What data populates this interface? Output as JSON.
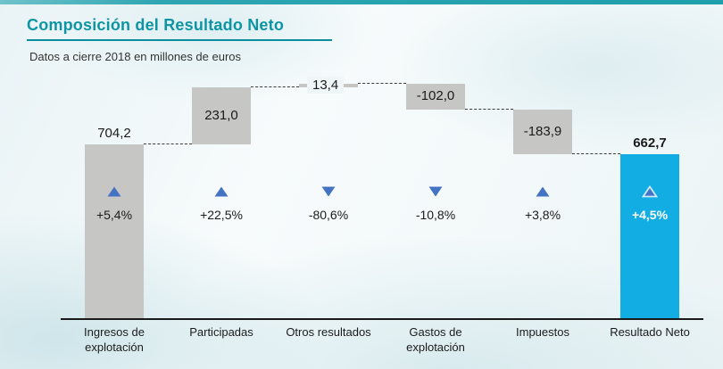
{
  "page": {
    "title": "Composición del Resultado Neto",
    "subtitle": "Datos a cierre 2018 en millones de euros"
  },
  "colors": {
    "accent_teal": "#0e95a4",
    "underline_teal": "#0b8d9d",
    "bar_gray": "#c6c6c4",
    "bar_blue": "#12ade3",
    "triangle_blue": "#4573c4",
    "triangle_outline": "#cfe9f7",
    "label_pill_bg": "#eff6f8",
    "text_dark": "#1b1b1b"
  },
  "chart_data": {
    "type": "bar",
    "subtype": "waterfall",
    "title": "Composición del Resultado Neto",
    "unit": "millones de euros",
    "categories": [
      "Ingresos de explotación",
      "Participadas",
      "Otros resultados",
      "Gastos de explotación",
      "Impuestos",
      "Resultado Neto"
    ],
    "values": [
      704.2,
      231.0,
      13.4,
      -102.0,
      -183.9,
      662.7
    ],
    "value_labels": [
      "704,2",
      "231,0",
      "13,4",
      "-102,0",
      "-183,9",
      "662,7"
    ],
    "change_labels": [
      "+5,4%",
      "+22,5%",
      "-80,6%",
      "-10,8%",
      "+3,8%",
      "+4,5%"
    ],
    "change_directions": [
      "up",
      "up",
      "down",
      "down",
      "up",
      "up"
    ],
    "bar_roles": [
      "absolute",
      "delta",
      "delta",
      "delta",
      "delta",
      "total"
    ],
    "ylim": [
      0,
      950
    ],
    "grid": false,
    "legend": "none"
  }
}
